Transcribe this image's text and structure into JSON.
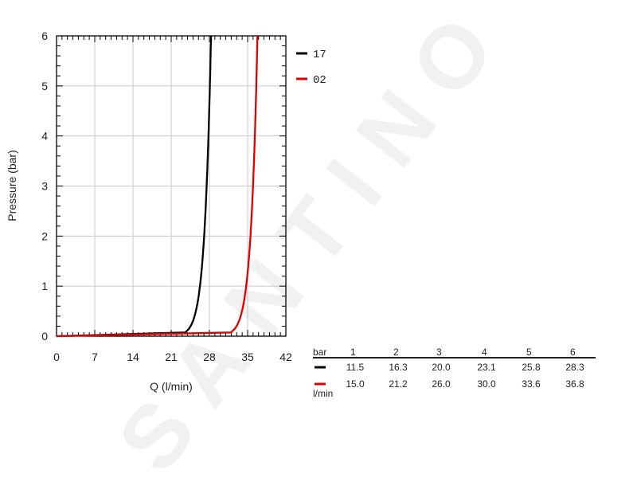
{
  "chart_data": {
    "type": "line",
    "title": "",
    "xlabel": "Q (l/min)",
    "ylabel": "Pressure (bar)",
    "xlim": [
      0,
      42
    ],
    "ylim": [
      0,
      6
    ],
    "x_ticks": [
      "0",
      "7",
      "14",
      "21",
      "28",
      "35",
      "42"
    ],
    "y_ticks": [
      "0",
      "1",
      "2",
      "3",
      "4",
      "5",
      "6"
    ],
    "grid": true,
    "legend_position": "right",
    "series": [
      {
        "name": "17",
        "color": "#000000",
        "points": [
          [
            0,
            0
          ],
          [
            11.5,
            1
          ],
          [
            16.3,
            2
          ],
          [
            20.0,
            3
          ],
          [
            23.1,
            4
          ],
          [
            25.8,
            5
          ],
          [
            28.3,
            6
          ]
        ]
      },
      {
        "name": "02",
        "color": "#e00000",
        "points": [
          [
            0,
            0
          ],
          [
            15.0,
            1
          ],
          [
            21.2,
            2
          ],
          [
            26.0,
            3
          ],
          [
            30.0,
            4
          ],
          [
            33.6,
            5
          ],
          [
            36.8,
            6
          ]
        ]
      }
    ],
    "table": {
      "row_header_top": "bar",
      "row_header_bottom": "l/min",
      "columns": [
        "1",
        "2",
        "3",
        "4",
        "5",
        "6"
      ],
      "rows": [
        {
          "color": "#000000",
          "values": [
            "11.5",
            "16.3",
            "20.0",
            "23.1",
            "25.8",
            "28.3"
          ]
        },
        {
          "color": "#e00000",
          "values": [
            "15.0",
            "21.2",
            "26.0",
            "30.0",
            "33.6",
            "36.8"
          ]
        }
      ]
    }
  },
  "watermark": "SANTINO"
}
